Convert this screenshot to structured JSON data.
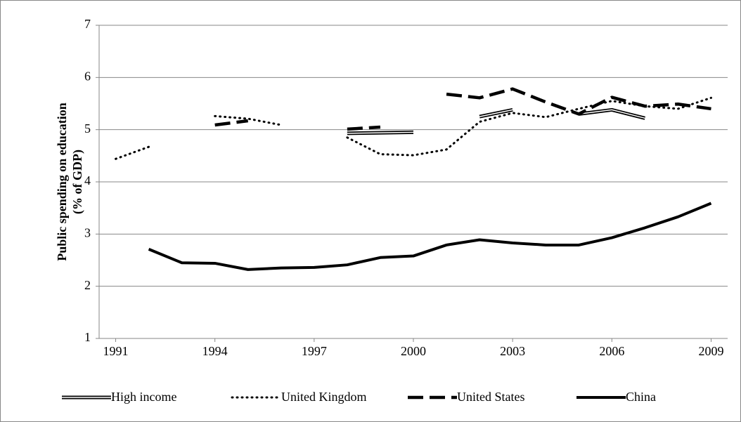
{
  "chart_data": {
    "type": "line",
    "y_label": [
      "Public spending on education",
      "(% of GDP)"
    ],
    "x": [
      1991,
      1992,
      1993,
      1994,
      1995,
      1996,
      1997,
      1998,
      1999,
      2000,
      2001,
      2002,
      2003,
      2004,
      2005,
      2006,
      2007,
      2008,
      2009
    ],
    "xlim": [
      1990.5,
      2009.5
    ],
    "xticks": [
      1991,
      1994,
      1997,
      2000,
      2003,
      2006,
      2009
    ],
    "ylim": [
      1,
      7
    ],
    "yticks": [
      1,
      2,
      3,
      4,
      5,
      6,
      7
    ],
    "grid": true,
    "legend": "bottom",
    "series": [
      {
        "name": "High income",
        "color": "#000000",
        "style": "double",
        "values": [
          null,
          null,
          null,
          null,
          null,
          null,
          null,
          4.93,
          4.94,
          4.95,
          null,
          5.25,
          5.38,
          null,
          5.3,
          5.38,
          5.22,
          null,
          null
        ]
      },
      {
        "name": "United Kingdom",
        "color": "#000000",
        "style": "dotted",
        "values": [
          4.44,
          4.67,
          null,
          5.26,
          5.21,
          5.09,
          null,
          4.85,
          4.53,
          4.51,
          4.62,
          5.15,
          5.32,
          5.24,
          5.4,
          5.55,
          5.45,
          5.4,
          5.61
        ]
      },
      {
        "name": "United States",
        "color": "#000000",
        "style": "dashed",
        "values": [
          null,
          null,
          null,
          5.09,
          5.17,
          null,
          null,
          5.01,
          5.05,
          null,
          5.68,
          5.61,
          5.78,
          5.53,
          5.3,
          5.62,
          5.45,
          5.49,
          5.4
        ]
      },
      {
        "name": "China",
        "color": "#000000",
        "style": "solid",
        "values": [
          null,
          2.71,
          2.45,
          2.44,
          2.32,
          2.35,
          2.36,
          2.41,
          2.55,
          2.58,
          2.79,
          2.89,
          2.83,
          2.79,
          2.79,
          2.93,
          3.12,
          3.33,
          3.59
        ]
      }
    ]
  }
}
